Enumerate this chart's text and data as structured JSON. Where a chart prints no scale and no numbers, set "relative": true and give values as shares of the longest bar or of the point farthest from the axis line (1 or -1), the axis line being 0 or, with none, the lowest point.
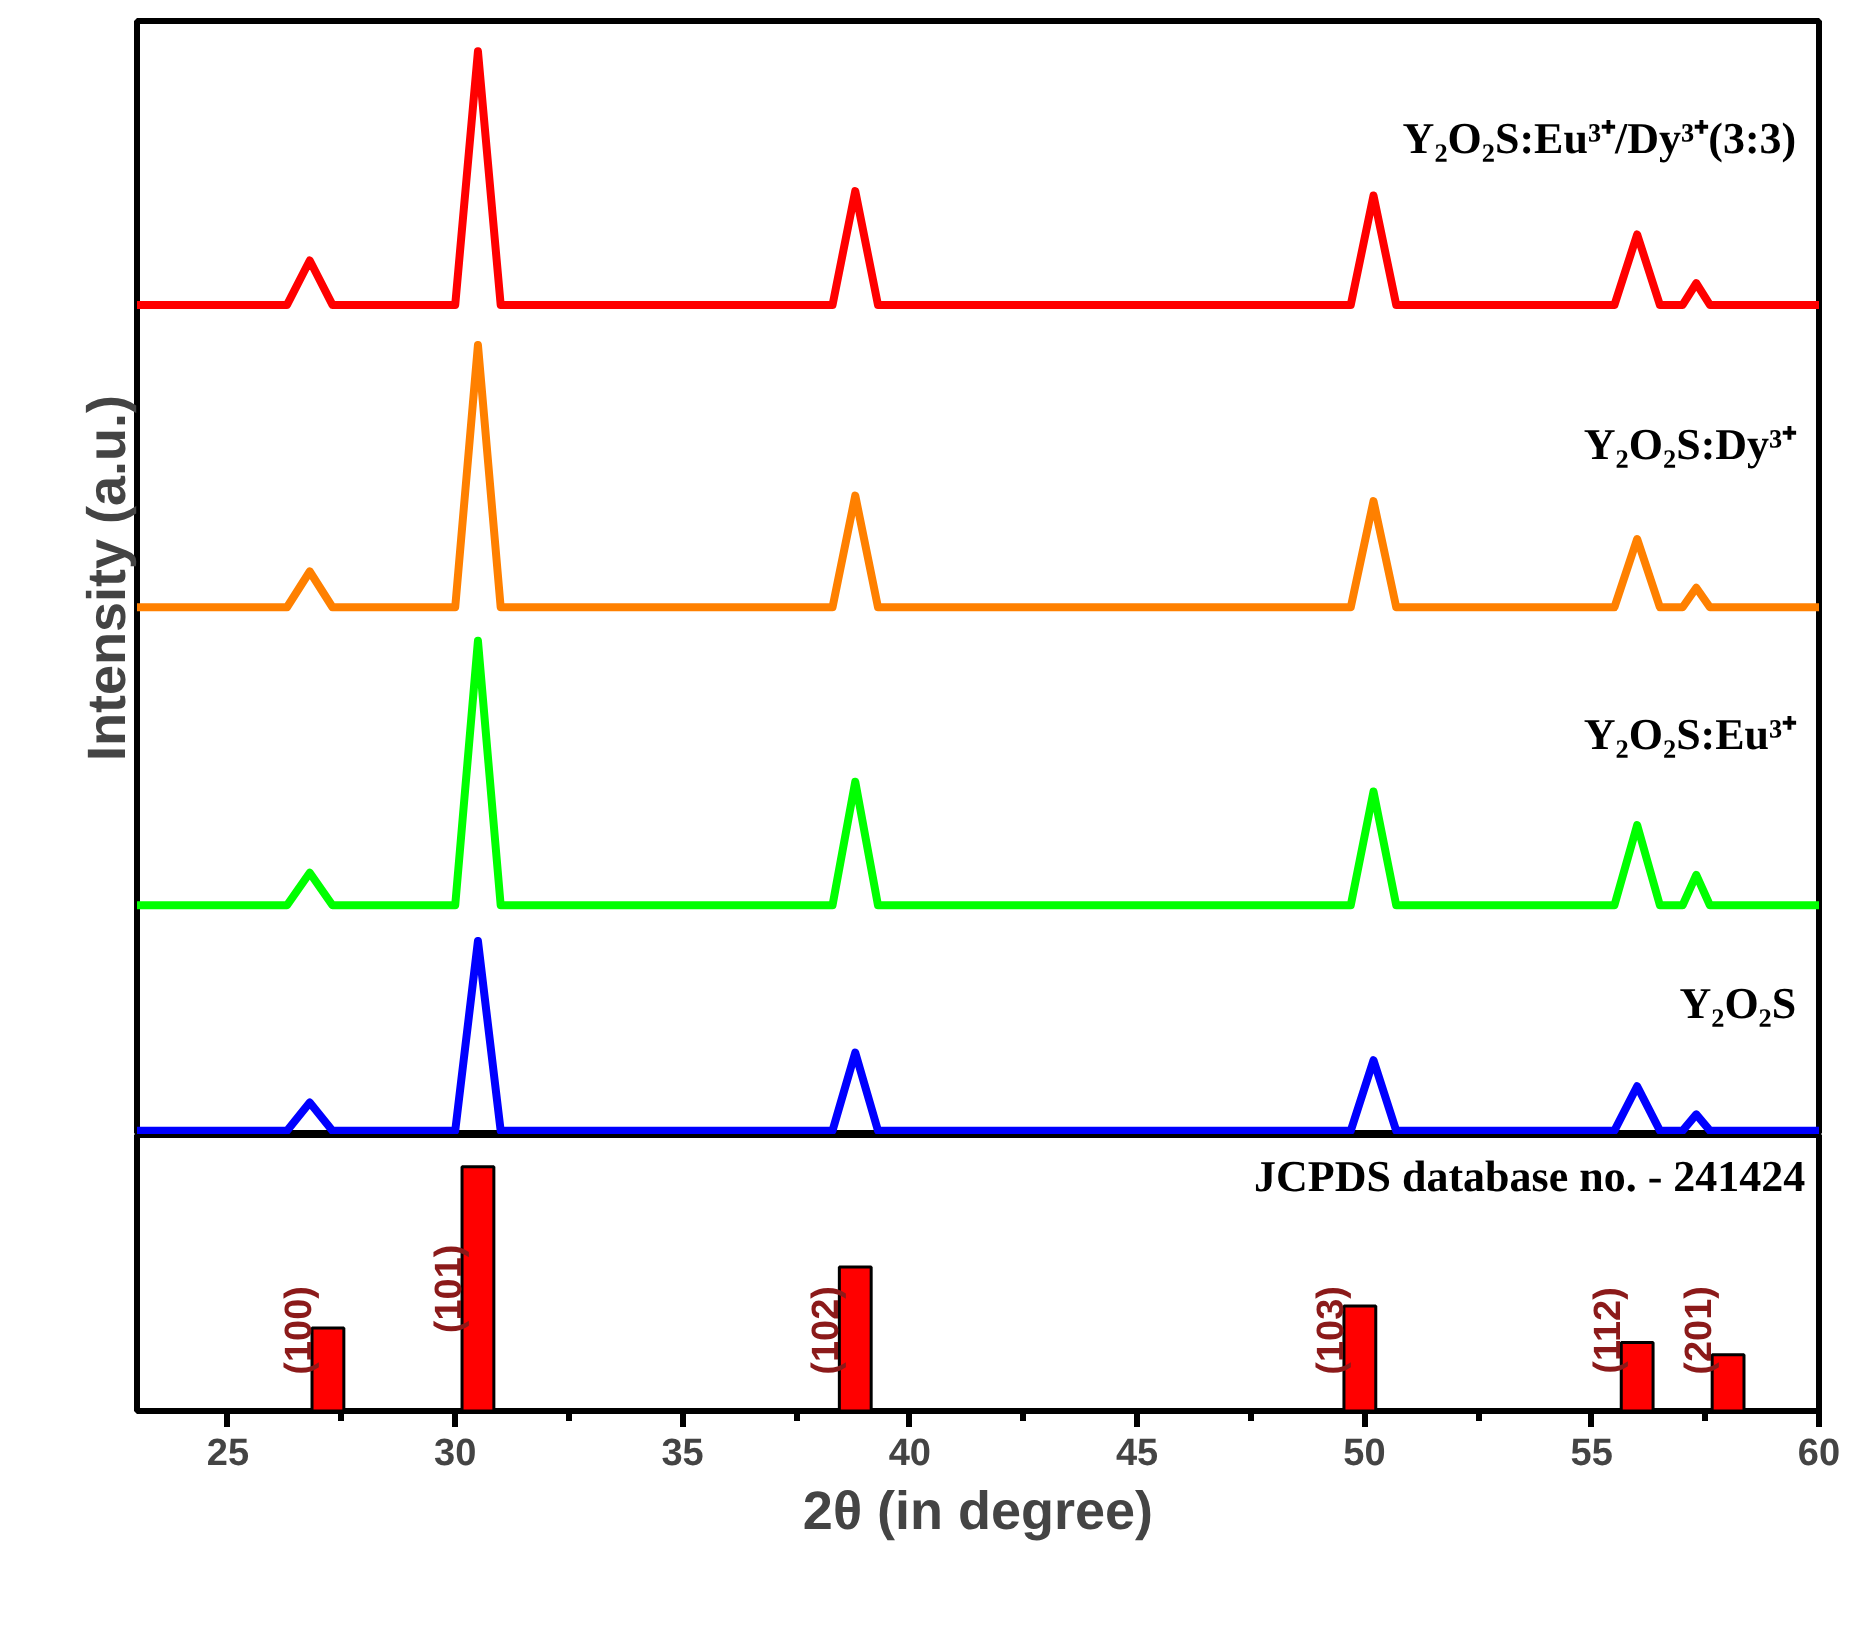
{
  "chart_data": [
    {
      "type": "line",
      "relative": true,
      "ylabel": "Intensity (a.u.)",
      "tick_labels": false,
      "xlim": [
        23,
        60
      ],
      "line_style": "solid",
      "marker": "none",
      "grid": false,
      "x": [
        23,
        26.3,
        26.8,
        27.3,
        30.0,
        30.5,
        31.0,
        38.3,
        38.8,
        39.3,
        49.7,
        50.2,
        50.7,
        55.5,
        56.0,
        56.5,
        57.0,
        57.3,
        57.6,
        60
      ],
      "series": [
        {
          "name": "Y₂O₂S:Eu³⁺/Dy³⁺(3:3)",
          "color": "#ff0000",
          "values": [
            0.766,
            0.766,
            0.807,
            0.766,
            0.766,
            1.0,
            0.766,
            0.766,
            0.871,
            0.766,
            0.766,
            0.867,
            0.766,
            0.766,
            0.831,
            0.766,
            0.766,
            0.786,
            0.766,
            0.766
          ]
        },
        {
          "name": "Y₂O₂S:Dy³⁺",
          "color": "#ff8000",
          "values": [
            0.487,
            0.487,
            0.52,
            0.487,
            0.487,
            0.729,
            0.487,
            0.487,
            0.59,
            0.487,
            0.487,
            0.585,
            0.487,
            0.487,
            0.55,
            0.487,
            0.487,
            0.505,
            0.487,
            0.487
          ]
        },
        {
          "name": "Y₂O₂S:Eu³⁺",
          "color": "#00ff00",
          "values": [
            0.212,
            0.212,
            0.242,
            0.212,
            0.212,
            0.456,
            0.212,
            0.212,
            0.326,
            0.212,
            0.212,
            0.317,
            0.212,
            0.212,
            0.286,
            0.212,
            0.212,
            0.24,
            0.212,
            0.212
          ]
        },
        {
          "name": "Y₂O₂S",
          "color": "#0000ff",
          "values": [
            0.004,
            0.004,
            0.03,
            0.004,
            0.004,
            0.179,
            0.004,
            0.004,
            0.076,
            0.004,
            0.004,
            0.069,
            0.004,
            0.004,
            0.045,
            0.004,
            0.004,
            0.019,
            0.004,
            0.004
          ]
        }
      ]
    },
    {
      "type": "bar",
      "relative": true,
      "xlabel": "2θ (in degree)",
      "tick_labels": "x",
      "xlim": [
        23,
        60
      ],
      "grid": false,
      "color": "#ff0000",
      "x": [
        27.2,
        30.5,
        38.8,
        49.9,
        56.0,
        58.0
      ],
      "values": [
        0.34,
        1.0,
        0.59,
        0.43,
        0.28,
        0.23
      ],
      "xticks": [
        25,
        {
          "value": 27.5,
          "label": null
        },
        30,
        {
          "value": 32.5,
          "label": null
        },
        35,
        {
          "value": 37.5,
          "label": null
        },
        40,
        {
          "value": 42.5,
          "label": null
        },
        45,
        {
          "value": 47.5,
          "label": null
        },
        50,
        {
          "value": 52.5,
          "label": null
        },
        55,
        {
          "value": 57.5,
          "label": null
        },
        60
      ],
      "annotations": [
        "JCPDS database no. - 241424",
        {
          "text": "(100)",
          "x": 27.2,
          "y": 0.34
        },
        {
          "text": "(101)",
          "x": 30.5,
          "y": 1.0
        },
        {
          "text": "(102)",
          "x": 38.8,
          "y": 0.59
        },
        {
          "text": "(103)",
          "x": 49.9,
          "y": 0.43
        },
        {
          "text": "(112)",
          "x": 56.0,
          "y": 0.28
        },
        {
          "text": "(201)",
          "x": 58.0,
          "y": 0.23
        }
      ]
    }
  ]
}
